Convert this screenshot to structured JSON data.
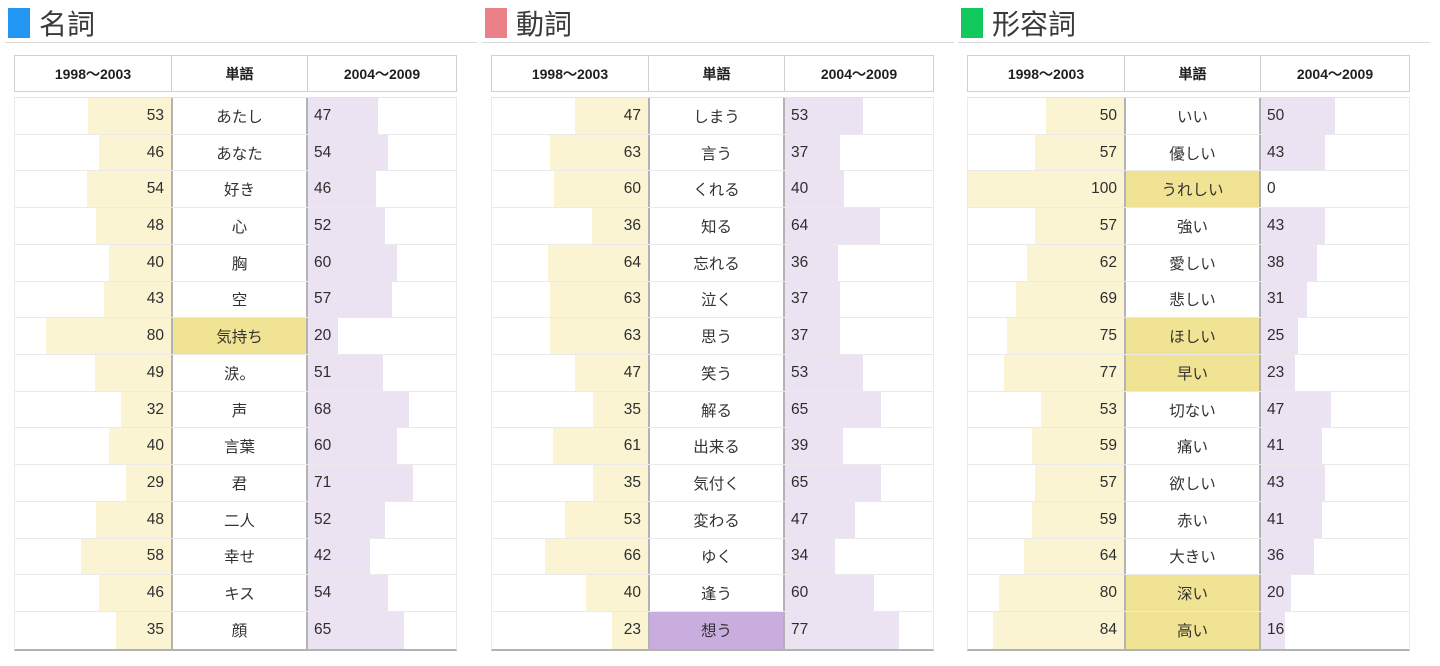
{
  "colors": {
    "bar_past": "#fbf4d3",
    "bar_recent": "#ebe3f1",
    "highlight_yellow": "#f1e394",
    "highlight_purple": "#c9addf"
  },
  "chart_data": [
    {
      "type": "table",
      "title": "名詞",
      "accent_color": "#2196f3",
      "columns": [
        "1998〜2003",
        "単語",
        "2004〜2009"
      ],
      "value_range": [
        0,
        100
      ],
      "rows": [
        {
          "past": 53,
          "word": "あたし",
          "recent": 47,
          "word_highlight": null
        },
        {
          "past": 46,
          "word": "あなた",
          "recent": 54,
          "word_highlight": null
        },
        {
          "past": 54,
          "word": "好き",
          "recent": 46,
          "word_highlight": null
        },
        {
          "past": 48,
          "word": "心",
          "recent": 52,
          "word_highlight": null
        },
        {
          "past": 40,
          "word": "胸",
          "recent": 60,
          "word_highlight": null
        },
        {
          "past": 43,
          "word": "空",
          "recent": 57,
          "word_highlight": null
        },
        {
          "past": 80,
          "word": "気持ち",
          "recent": 20,
          "word_highlight": "yellow"
        },
        {
          "past": 49,
          "word": "涙。",
          "recent": 51,
          "word_highlight": null
        },
        {
          "past": 32,
          "word": "声",
          "recent": 68,
          "word_highlight": null
        },
        {
          "past": 40,
          "word": "言葉",
          "recent": 60,
          "word_highlight": null
        },
        {
          "past": 29,
          "word": "君",
          "recent": 71,
          "word_highlight": null
        },
        {
          "past": 48,
          "word": "二人",
          "recent": 52,
          "word_highlight": null
        },
        {
          "past": 58,
          "word": "幸せ",
          "recent": 42,
          "word_highlight": null
        },
        {
          "past": 46,
          "word": "キス",
          "recent": 54,
          "word_highlight": null
        },
        {
          "past": 35,
          "word": "顔",
          "recent": 65,
          "word_highlight": null
        }
      ]
    },
    {
      "type": "table",
      "title": "動詞",
      "accent_color": "#ec8089",
      "columns": [
        "1998〜2003",
        "単語",
        "2004〜2009"
      ],
      "value_range": [
        0,
        100
      ],
      "rows": [
        {
          "past": 47,
          "word": "しまう",
          "recent": 53,
          "word_highlight": null
        },
        {
          "past": 63,
          "word": "言う",
          "recent": 37,
          "word_highlight": null
        },
        {
          "past": 60,
          "word": "くれる",
          "recent": 40,
          "word_highlight": null
        },
        {
          "past": 36,
          "word": "知る",
          "recent": 64,
          "word_highlight": null
        },
        {
          "past": 64,
          "word": "忘れる",
          "recent": 36,
          "word_highlight": null
        },
        {
          "past": 63,
          "word": "泣く",
          "recent": 37,
          "word_highlight": null
        },
        {
          "past": 63,
          "word": "思う",
          "recent": 37,
          "word_highlight": null
        },
        {
          "past": 47,
          "word": "笑う",
          "recent": 53,
          "word_highlight": null
        },
        {
          "past": 35,
          "word": "解る",
          "recent": 65,
          "word_highlight": null
        },
        {
          "past": 61,
          "word": "出来る",
          "recent": 39,
          "word_highlight": null
        },
        {
          "past": 35,
          "word": "気付く",
          "recent": 65,
          "word_highlight": null
        },
        {
          "past": 53,
          "word": "変わる",
          "recent": 47,
          "word_highlight": null
        },
        {
          "past": 66,
          "word": "ゆく",
          "recent": 34,
          "word_highlight": null
        },
        {
          "past": 40,
          "word": "逢う",
          "recent": 60,
          "word_highlight": null
        },
        {
          "past": 23,
          "word": "想う",
          "recent": 77,
          "word_highlight": "purple"
        }
      ]
    },
    {
      "type": "table",
      "title": "形容詞",
      "accent_color": "#12c95e",
      "columns": [
        "1998〜2003",
        "単語",
        "2004〜2009"
      ],
      "value_range": [
        0,
        100
      ],
      "rows": [
        {
          "past": 50,
          "word": "いい",
          "recent": 50,
          "word_highlight": null
        },
        {
          "past": 57,
          "word": "優しい",
          "recent": 43,
          "word_highlight": null
        },
        {
          "past": 100,
          "word": "うれしい",
          "recent": 0,
          "word_highlight": "yellow"
        },
        {
          "past": 57,
          "word": "強い",
          "recent": 43,
          "word_highlight": null
        },
        {
          "past": 62,
          "word": "愛しい",
          "recent": 38,
          "word_highlight": null
        },
        {
          "past": 69,
          "word": "悲しい",
          "recent": 31,
          "word_highlight": null
        },
        {
          "past": 75,
          "word": "ほしい",
          "recent": 25,
          "word_highlight": "yellow"
        },
        {
          "past": 77,
          "word": "早い",
          "recent": 23,
          "word_highlight": "yellow"
        },
        {
          "past": 53,
          "word": "切ない",
          "recent": 47,
          "word_highlight": null
        },
        {
          "past": 59,
          "word": "痛い",
          "recent": 41,
          "word_highlight": null
        },
        {
          "past": 57,
          "word": "欲しい",
          "recent": 43,
          "word_highlight": null
        },
        {
          "past": 59,
          "word": "赤い",
          "recent": 41,
          "word_highlight": null
        },
        {
          "past": 64,
          "word": "大きい",
          "recent": 36,
          "word_highlight": null
        },
        {
          "past": 80,
          "word": "深い",
          "recent": 20,
          "word_highlight": "yellow"
        },
        {
          "past": 84,
          "word": "高い",
          "recent": 16,
          "word_highlight": "yellow"
        }
      ]
    }
  ]
}
